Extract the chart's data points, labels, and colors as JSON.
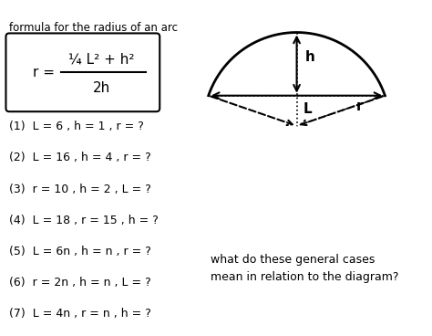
{
  "title": "formula for the radius of an arc",
  "problems": [
    "(1)  L = 6 , h = 1 , r = ?",
    "(2)  L = 16 , h = 4 , r = ?",
    "(3)  r = 10 , h = 2 , L = ?",
    "(4)  L = 18 , r = 15 , h = ?",
    "(5)  L = 6n , h = n , r = ?",
    "(6)  r = 2n , h = n , L = ?",
    "(7)  L = 4n , r = n , h = ?"
  ],
  "note": "what do these general cases\nmean in relation to the diagram?",
  "bg_color": "#ffffff",
  "text_color": "#000000"
}
